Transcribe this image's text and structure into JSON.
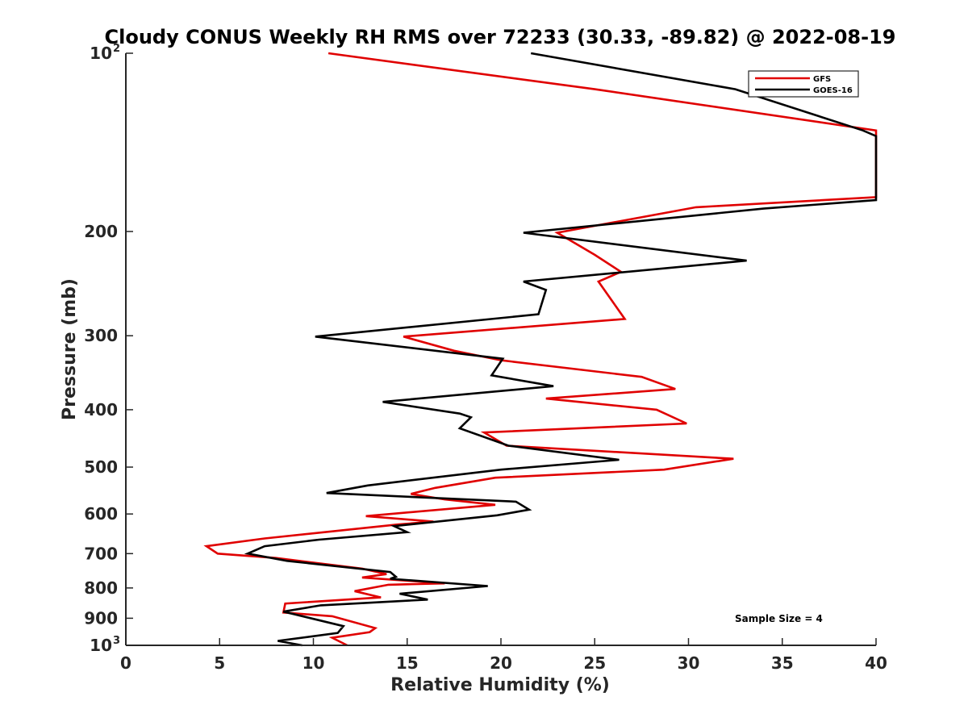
{
  "chart_data": {
    "type": "line",
    "title": "Cloudy CONUS Weekly RH RMS over 72233 (30.33, -89.82) @ 2022-08-19",
    "xlabel": "Relative Humidity (%)",
    "ylabel": "Pressure (mb)",
    "xlim": [
      0,
      40
    ],
    "ylim": [
      100,
      1000
    ],
    "yscale": "log",
    "y_reversed": true,
    "x_ticks": [
      "0",
      "5",
      "10",
      "15",
      "20",
      "25",
      "30",
      "35",
      "40"
    ],
    "y_ticks": [
      {
        "value": 100,
        "label": "10",
        "sup": "2"
      },
      {
        "value": 200,
        "label": "200",
        "sup": ""
      },
      {
        "value": 300,
        "label": "300",
        "sup": ""
      },
      {
        "value": 400,
        "label": "400",
        "sup": ""
      },
      {
        "value": 500,
        "label": "500",
        "sup": ""
      },
      {
        "value": 600,
        "label": "600",
        "sup": ""
      },
      {
        "value": 700,
        "label": "700",
        "sup": ""
      },
      {
        "value": 800,
        "label": "800",
        "sup": ""
      },
      {
        "value": 900,
        "label": "900",
        "sup": ""
      },
      {
        "value": 1000,
        "label": "10",
        "sup": "3"
      }
    ],
    "legend_position": "top-right",
    "annotation": "Sample Size = 4",
    "series": [
      {
        "name": "GFS",
        "color": "#e00000",
        "points": [
          [
            10.8,
            100
          ],
          [
            25,
            115
          ],
          [
            40,
            135
          ],
          [
            40,
            175
          ],
          [
            30.4,
            182
          ],
          [
            23,
            201
          ],
          [
            25,
            219
          ],
          [
            26.4,
            234
          ],
          [
            25.2,
            243
          ],
          [
            26.6,
            281
          ],
          [
            14.8,
            301
          ],
          [
            17.5,
            318
          ],
          [
            20,
            330
          ],
          [
            27.5,
            352
          ],
          [
            29.3,
            369
          ],
          [
            22.4,
            383
          ],
          [
            28.3,
            400
          ],
          [
            29.9,
            422
          ],
          [
            19.1,
            437
          ],
          [
            20.3,
            460
          ],
          [
            32.4,
            484
          ],
          [
            28.7,
            505
          ],
          [
            19.7,
            521
          ],
          [
            16.5,
            542
          ],
          [
            15.2,
            555
          ],
          [
            17,
            567
          ],
          [
            19.7,
            579
          ],
          [
            12.8,
            605
          ],
          [
            16.4,
            618
          ],
          [
            14.5,
            625
          ],
          [
            7.4,
            660
          ],
          [
            4.3,
            680
          ],
          [
            4.9,
            700
          ],
          [
            8,
            712
          ],
          [
            12.6,
            742
          ],
          [
            13.9,
            758
          ],
          [
            12.6,
            768
          ],
          [
            17,
            786
          ],
          [
            14,
            790
          ],
          [
            12.2,
            810
          ],
          [
            13.6,
            830
          ],
          [
            8.5,
            850
          ],
          [
            8.4,
            880
          ],
          [
            11,
            893
          ],
          [
            13.3,
            935
          ],
          [
            13,
            950
          ],
          [
            11,
            971
          ],
          [
            11.8,
            1000
          ]
        ]
      },
      {
        "name": "GOES-16",
        "color": "#000000",
        "points": [
          [
            21.6,
            100
          ],
          [
            32.5,
            115
          ],
          [
            39.3,
            135
          ],
          [
            40,
            138
          ],
          [
            40,
            177
          ],
          [
            34,
            183
          ],
          [
            21.2,
            201
          ],
          [
            33.1,
            224
          ],
          [
            21.2,
            243
          ],
          [
            22.4,
            251
          ],
          [
            22,
            276
          ],
          [
            10.1,
            301
          ],
          [
            20.1,
            328
          ],
          [
            19.5,
            350
          ],
          [
            22.8,
            365
          ],
          [
            13.7,
            388
          ],
          [
            17.8,
            406
          ],
          [
            18.4,
            412
          ],
          [
            17.8,
            430
          ],
          [
            20.4,
            460
          ],
          [
            26.3,
            486
          ],
          [
            20,
            505
          ],
          [
            12.9,
            537
          ],
          [
            10.7,
            553
          ],
          [
            20.8,
            572
          ],
          [
            21.5,
            590
          ],
          [
            19.8,
            603
          ],
          [
            14.3,
            629
          ],
          [
            15,
            644
          ],
          [
            10.3,
            663
          ],
          [
            7.4,
            680
          ],
          [
            6.5,
            700
          ],
          [
            8.6,
            720
          ],
          [
            14.1,
            752
          ],
          [
            14.4,
            766
          ],
          [
            14.1,
            772
          ],
          [
            19.3,
            794
          ],
          [
            14.6,
            818
          ],
          [
            16.1,
            837
          ],
          [
            10.4,
            856
          ],
          [
            8.4,
            877
          ],
          [
            11.6,
            928
          ],
          [
            11.3,
            953
          ],
          [
            8.1,
            983
          ],
          [
            9.4,
            1000
          ]
        ]
      }
    ]
  }
}
